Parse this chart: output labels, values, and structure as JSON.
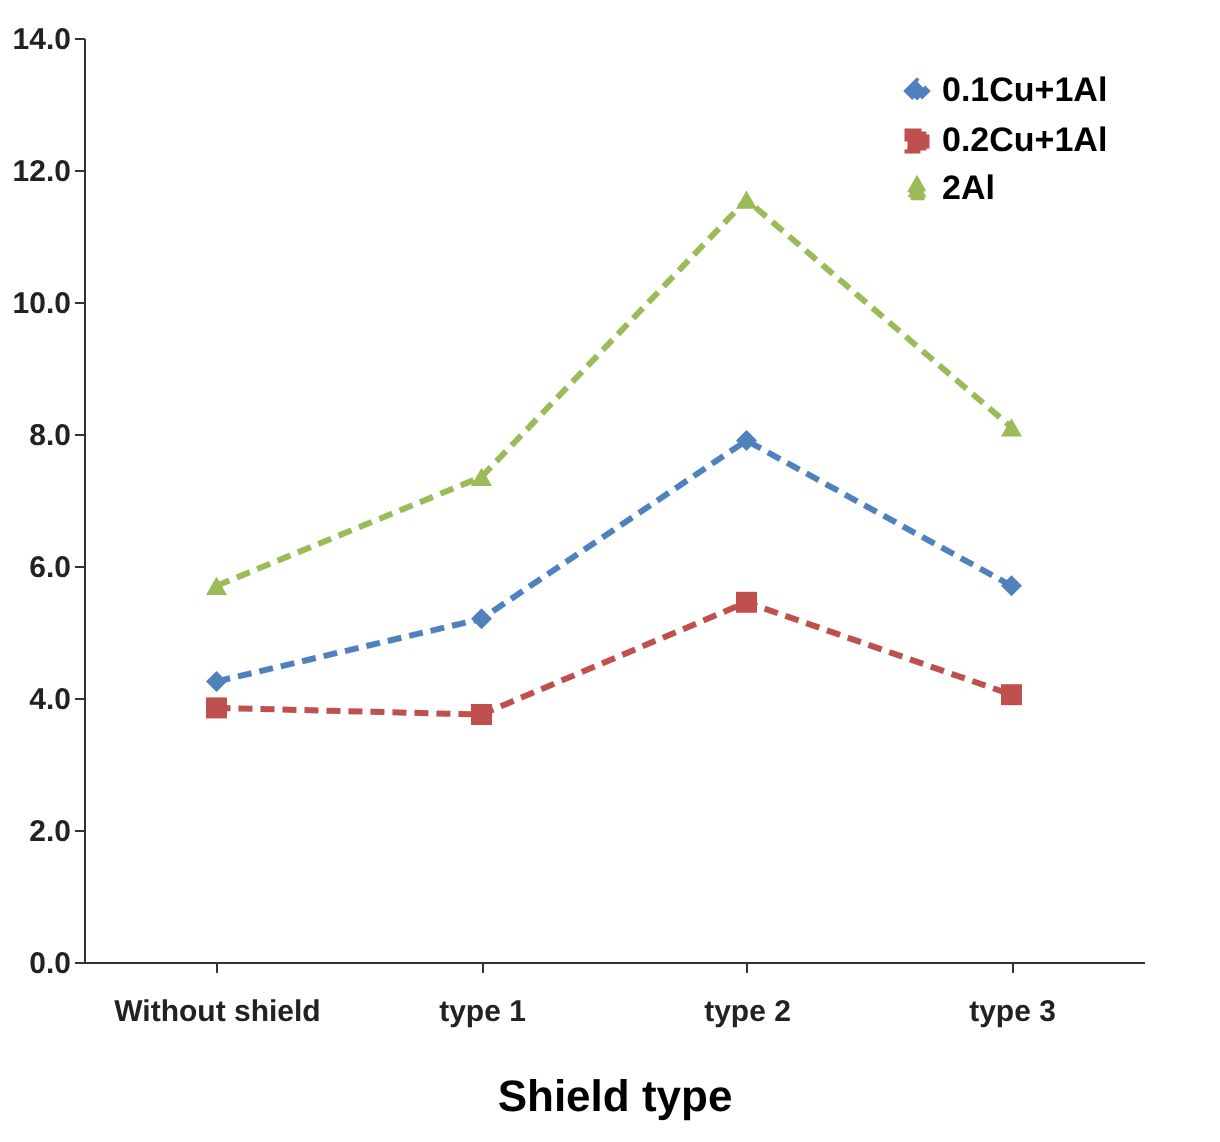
{
  "chart_data": {
    "type": "line",
    "xlabel": "Shield type",
    "categories": [
      "Without shield",
      "type 1",
      "type 2",
      "type 3"
    ],
    "series": [
      {
        "name": "0.1Cu+1Al",
        "color": "#4f81bd",
        "marker": "diamond",
        "values": [
          4.25,
          5.2,
          7.9,
          5.7
        ]
      },
      {
        "name": "0.2Cu+1Al",
        "color": "#c0504d",
        "marker": "square",
        "values": [
          3.85,
          3.75,
          5.45,
          4.05
        ]
      },
      {
        "name": "2Al",
        "color": "#9bbb59",
        "marker": "triangle",
        "values": [
          5.7,
          7.35,
          11.55,
          8.1
        ]
      }
    ],
    "line_style": "dashed",
    "ylim": [
      0,
      14
    ],
    "yticks": [
      {
        "value": 0,
        "label": "0.0"
      },
      {
        "value": 2,
        "label": "2.0"
      },
      {
        "value": 4,
        "label": "4.0"
      },
      {
        "value": 6,
        "label": "6.0"
      },
      {
        "value": 8,
        "label": "8.0"
      },
      {
        "value": 10,
        "label": "10.0"
      },
      {
        "value": 12,
        "label": "12.0"
      },
      {
        "value": 14,
        "label": "14.0"
      }
    ],
    "grid": false,
    "legend": "top right"
  }
}
